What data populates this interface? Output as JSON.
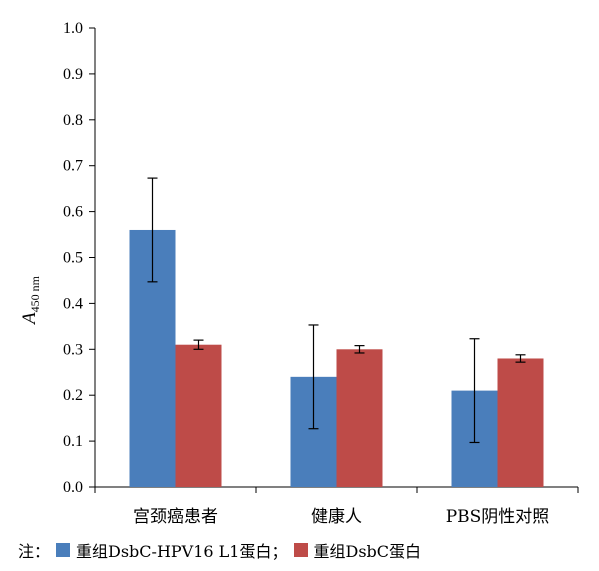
{
  "chart_data": {
    "type": "bar",
    "categories": [
      "宫颈癌患者",
      "健康人",
      "PBS阴性对照"
    ],
    "series": [
      {
        "name": "重组DsbC-HPV16 L1蛋白",
        "values": [
          0.56,
          0.24,
          0.21
        ],
        "errors": [
          0.113,
          0.113,
          0.113
        ],
        "color": "#4a7ebb"
      },
      {
        "name": "重组DsbC蛋白",
        "values": [
          0.31,
          0.3,
          0.28
        ],
        "errors": [
          0.01,
          0.008,
          0.008
        ],
        "color": "#be4b48"
      }
    ],
    "ylim": [
      0,
      1.0
    ],
    "yticks": [
      "0.0",
      "0.1",
      "0.2",
      "0.3",
      "0.4",
      "0.5",
      "0.6",
      "0.7",
      "0.8",
      "0.9",
      "1.0"
    ],
    "ylabel_main": "A",
    "ylabel_sub": "450 nm",
    "grid": false
  },
  "legend": {
    "prefix": "注：",
    "separator": "；"
  }
}
